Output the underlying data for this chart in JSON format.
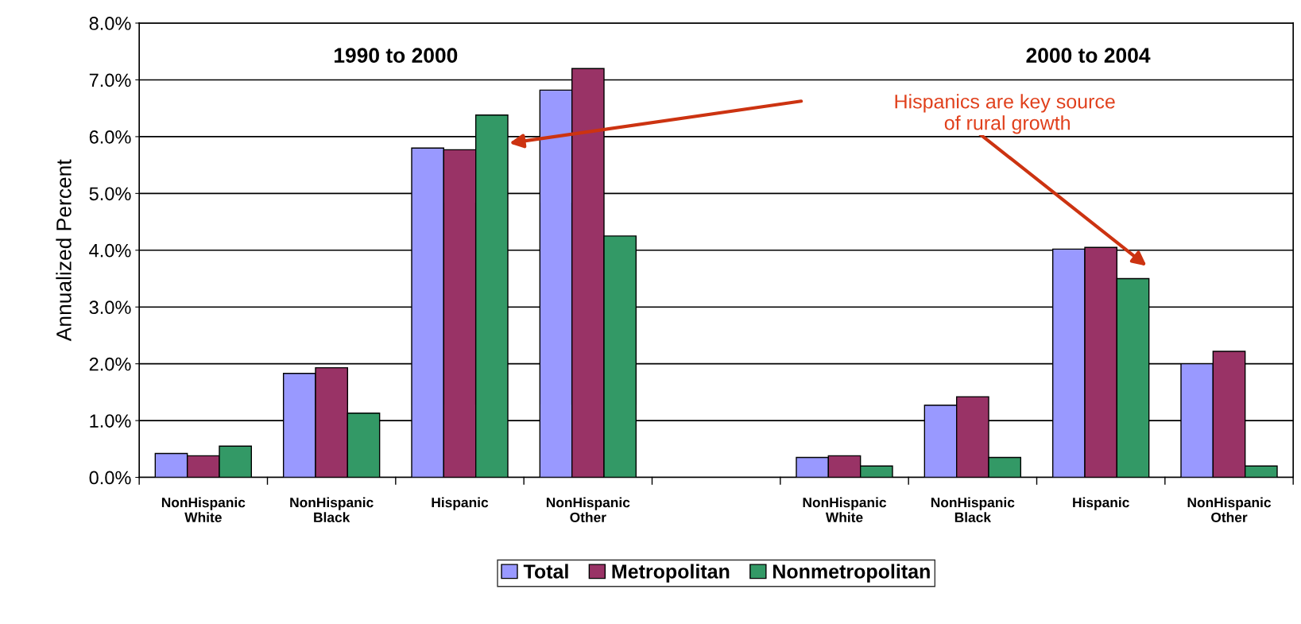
{
  "chart_data": {
    "type": "bar",
    "ylabel": "Annualized Percent",
    "categories": [
      "NonHispanic\nWhite",
      "NonHispanic\nBlack",
      "Hispanic",
      "NonHispanic\nOther",
      null,
      "NonHispanic\nWhite",
      "NonHispanic\nBlack",
      "Hispanic",
      "NonHispanic\nOther"
    ],
    "series": [
      {
        "name": "Total",
        "color": "#9999ff",
        "values": [
          0.42,
          1.83,
          5.8,
          6.82,
          null,
          0.35,
          1.27,
          4.02,
          2.0
        ]
      },
      {
        "name": "Metropolitan",
        "color": "#993366",
        "values": [
          0.38,
          1.93,
          5.77,
          7.2,
          null,
          0.38,
          1.42,
          4.05,
          2.22
        ]
      },
      {
        "name": "Nonmetropolitan",
        "color": "#339966",
        "values": [
          0.55,
          1.13,
          6.38,
          4.25,
          null,
          0.2,
          0.35,
          3.5,
          0.2
        ]
      }
    ],
    "ylim": [
      0,
      8
    ],
    "yticks": [
      {
        "value": 0,
        "label": "0.0%"
      },
      {
        "value": 1,
        "label": "1.0%"
      },
      {
        "value": 2,
        "label": "2.0%"
      },
      {
        "value": 3,
        "label": "3.0%"
      },
      {
        "value": 4,
        "label": "4.0%"
      },
      {
        "value": 5,
        "label": "5.0%"
      },
      {
        "value": 6,
        "label": "6.0%"
      },
      {
        "value": 7,
        "label": "7.0%"
      },
      {
        "value": 8,
        "label": "8.0%"
      }
    ],
    "grid": "y",
    "legend": "bottom",
    "annotations": [
      "1990 to 2000",
      "2000 to 2004",
      "Hispanics are key source\n of rural growth"
    ]
  }
}
